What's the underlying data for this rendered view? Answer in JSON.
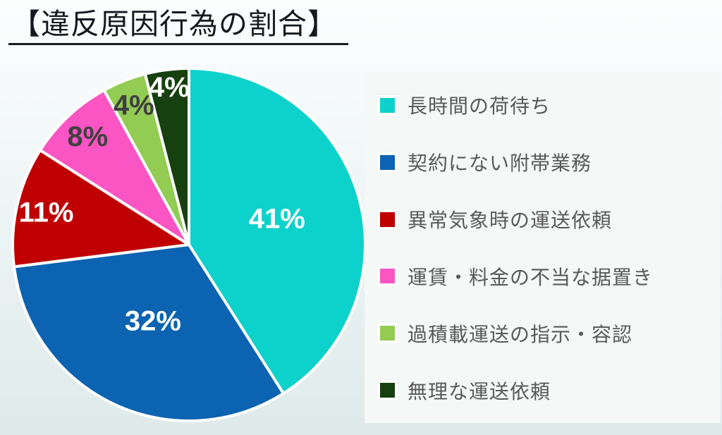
{
  "title": {
    "text": "【違反原因行為の割合】"
  },
  "chart_data": {
    "type": "pie",
    "title": "違反原因行為の割合",
    "start_angle_deg": 0,
    "direction": "clockwise",
    "legend_position": "right",
    "total": 100,
    "slices": [
      {
        "label": "長時間の荷待ち",
        "value": 41,
        "label_text": "41%",
        "color": "#0DD2CB",
        "label_color": "#FFFFFF",
        "label_radius_frac": 0.52
      },
      {
        "label": "契約にない附帯業務",
        "value": 32,
        "label_text": "32%",
        "color": "#0B63B1",
        "label_color": "#FFFFFF",
        "label_radius_frac": 0.48
      },
      {
        "label": "異常気象時の運送依頼",
        "value": 11,
        "label_text": "11%",
        "color": "#C00000",
        "label_color": "#FFFFFF",
        "label_radius_frac": 0.83
      },
      {
        "label": "運賃・料金の不当な据置き",
        "value": 8,
        "label_text": "8%",
        "color": "#FB55C3",
        "label_color": "#404040",
        "label_radius_frac": 0.84
      },
      {
        "label": "過積載運送の指示・容認",
        "value": 4,
        "label_text": "4%",
        "color": "#92CC53",
        "label_color": "#404040",
        "label_radius_frac": 0.85
      },
      {
        "label": "無理な運送依頼",
        "value": 4,
        "label_text": "4%",
        "color": "#16400F",
        "label_color": "#FFFFFF",
        "label_radius_frac": 0.9
      }
    ]
  }
}
